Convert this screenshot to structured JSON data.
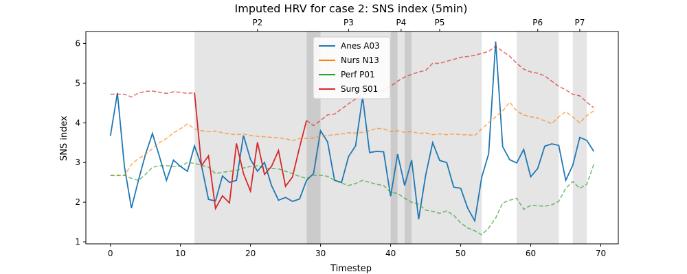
{
  "chart_data": {
    "type": "line",
    "title": "Imputed HRV for case 2: SNS index (5min)",
    "xlabel": "Timestep",
    "ylabel": "SNS index",
    "xlim": [
      -3.5,
      72.5
    ],
    "ylim": [
      0.95,
      6.3
    ],
    "xticks": [
      0,
      10,
      20,
      30,
      40,
      50,
      60,
      70
    ],
    "yticks": [
      1,
      2,
      3,
      4,
      5,
      6
    ],
    "grid": false,
    "legend_position": "top-center",
    "phase_bands": [
      {
        "start": 12,
        "end": 28
      },
      {
        "start": 30,
        "end": 40
      },
      {
        "start": 41,
        "end": 42
      },
      {
        "start": 43,
        "end": 53
      },
      {
        "start": 58,
        "end": 64
      },
      {
        "start": 66,
        "end": 68
      }
    ],
    "overlap_bands": [
      {
        "start": 28,
        "end": 30
      },
      {
        "start": 40,
        "end": 41
      },
      {
        "start": 42,
        "end": 43
      }
    ],
    "phase_labels": [
      {
        "label": "P2",
        "x": 21
      },
      {
        "label": "P3",
        "x": 34
      },
      {
        "label": "P4",
        "x": 41.5
      },
      {
        "label": "P5",
        "x": 47
      },
      {
        "label": "P6",
        "x": 61
      },
      {
        "label": "P7",
        "x": 67
      }
    ],
    "series": [
      {
        "name": "Anes A03",
        "color": "#1f77b4",
        "x": [
          0,
          1,
          2,
          3,
          4,
          5,
          6,
          7,
          8,
          9,
          10,
          11,
          12,
          13,
          14,
          15,
          16,
          17,
          18,
          19,
          20,
          21,
          22,
          23,
          24,
          25,
          26,
          27,
          28,
          29,
          30,
          31,
          32,
          33,
          34,
          35,
          36,
          37,
          38,
          39,
          40,
          41,
          42,
          43,
          44,
          45,
          46,
          47,
          48,
          49,
          50,
          51,
          52,
          53,
          54,
          55,
          56,
          57,
          58,
          59,
          60,
          61,
          62,
          63,
          64,
          65,
          66,
          67,
          68,
          69
        ],
        "y": [
          3.67,
          4.75,
          2.9,
          1.85,
          2.55,
          3.2,
          3.73,
          3.15,
          2.55,
          3.06,
          2.9,
          2.78,
          3.42,
          2.92,
          2.07,
          2.03,
          2.66,
          2.5,
          2.55,
          3.68,
          3.08,
          2.78,
          3.0,
          2.42,
          2.05,
          2.12,
          2.02,
          2.08,
          2.55,
          2.72,
          3.8,
          3.52,
          2.55,
          2.5,
          3.15,
          3.42,
          4.65,
          3.25,
          3.28,
          3.27,
          2.15,
          3.21,
          2.42,
          3.06,
          1.57,
          2.68,
          3.5,
          3.05,
          3.0,
          2.38,
          2.35,
          1.85,
          1.53,
          2.63,
          3.22,
          6.05,
          3.4,
          3.07,
          2.99,
          3.33,
          2.64,
          2.85,
          3.41,
          3.47,
          3.43,
          2.55,
          2.93,
          3.63,
          3.56,
          3.28
        ]
      },
      {
        "name": "Nurs N13",
        "color": "#ff7f0e",
        "x": [
          0,
          1,
          2,
          3,
          4,
          5,
          6,
          7,
          8,
          9,
          10,
          11,
          12,
          13,
          14,
          15,
          16,
          17,
          18,
          19,
          20,
          21,
          22,
          23,
          24,
          25,
          26,
          27,
          28,
          29,
          30,
          31,
          32,
          33,
          34,
          35,
          36,
          37,
          38,
          39,
          40,
          41,
          42,
          43,
          44,
          45,
          46,
          47,
          48,
          49,
          50,
          51,
          52,
          53,
          54,
          55,
          56,
          57,
          58,
          59,
          60,
          61,
          62,
          63,
          64,
          65,
          66,
          67,
          68,
          69
        ],
        "y": [
          2.67,
          2.67,
          2.67,
          2.95,
          3.1,
          3.2,
          3.35,
          3.5,
          3.6,
          3.75,
          3.85,
          3.97,
          3.85,
          3.8,
          3.78,
          3.79,
          3.75,
          3.72,
          3.7,
          3.72,
          3.68,
          3.66,
          3.65,
          3.63,
          3.62,
          3.6,
          3.55,
          3.6,
          3.61,
          3.62,
          3.66,
          3.68,
          3.7,
          3.72,
          3.75,
          3.74,
          3.76,
          3.8,
          3.86,
          3.85,
          3.78,
          3.8,
          3.76,
          3.78,
          3.73,
          3.75,
          3.7,
          3.72,
          3.7,
          3.72,
          3.7,
          3.7,
          3.68,
          3.85,
          4.0,
          4.15,
          4.3,
          4.52,
          4.3,
          4.2,
          4.15,
          4.12,
          4.05,
          3.98,
          4.15,
          4.28,
          4.15,
          4.0,
          4.18,
          4.3
        ]
      },
      {
        "name": "Perf P01",
        "color": "#2ca02c",
        "x": [
          0,
          1,
          2,
          3,
          4,
          5,
          6,
          7,
          8,
          9,
          10,
          11,
          12,
          13,
          14,
          15,
          16,
          17,
          18,
          19,
          20,
          21,
          22,
          23,
          24,
          25,
          26,
          27,
          28,
          29,
          30,
          31,
          32,
          33,
          34,
          35,
          36,
          37,
          38,
          39,
          40,
          41,
          42,
          43,
          44,
          45,
          46,
          47,
          48,
          49,
          50,
          51,
          52,
          53,
          54,
          55,
          56,
          57,
          58,
          59,
          60,
          61,
          62,
          63,
          64,
          65,
          66,
          67,
          68,
          69
        ],
        "y": [
          2.68,
          2.68,
          2.68,
          2.6,
          2.55,
          2.7,
          2.88,
          2.92,
          2.92,
          2.9,
          2.9,
          3.0,
          2.98,
          2.93,
          2.88,
          2.72,
          2.75,
          2.78,
          2.8,
          2.86,
          2.9,
          2.92,
          2.85,
          2.85,
          2.84,
          2.78,
          2.72,
          2.65,
          2.6,
          2.68,
          2.68,
          2.65,
          2.55,
          2.48,
          2.42,
          2.47,
          2.55,
          2.5,
          2.45,
          2.42,
          2.25,
          2.22,
          2.1,
          2.0,
          1.95,
          1.8,
          1.77,
          1.72,
          1.78,
          1.67,
          1.48,
          1.35,
          1.28,
          1.18,
          1.35,
          1.6,
          1.98,
          2.05,
          2.1,
          1.82,
          1.92,
          1.91,
          1.9,
          1.93,
          2.02,
          2.35,
          2.52,
          2.35,
          2.45,
          2.95
        ]
      },
      {
        "name": "Surg S01",
        "color": "#d62728",
        "x": [
          0,
          1,
          2,
          3,
          4,
          5,
          6,
          7,
          8,
          9,
          10,
          11,
          12,
          13,
          14,
          15,
          16,
          17,
          18,
          19,
          20,
          21,
          22,
          23,
          24,
          25,
          26,
          27,
          28,
          29,
          30,
          31,
          32,
          33,
          34,
          35,
          36,
          37,
          38,
          39,
          40,
          41,
          42,
          43,
          44,
          45,
          46,
          47,
          48,
          49,
          50,
          51,
          52,
          53,
          54,
          55,
          56,
          57,
          58,
          59,
          60,
          61,
          62,
          63,
          64,
          65,
          66,
          67,
          68,
          69
        ],
        "y": [
          4.72,
          4.72,
          4.72,
          4.65,
          4.75,
          4.79,
          4.8,
          4.77,
          4.74,
          4.78,
          4.77,
          4.74,
          4.76,
          2.92,
          3.17,
          1.84,
          2.16,
          1.98,
          3.48,
          2.72,
          2.28,
          3.51,
          2.7,
          2.9,
          3.3,
          2.4,
          2.64,
          3.38,
          4.06,
          3.93,
          4.06,
          4.2,
          4.22,
          4.35,
          4.48,
          4.6,
          4.72,
          4.75,
          4.8,
          4.82,
          4.92,
          5.05,
          5.15,
          5.22,
          5.28,
          5.32,
          5.5,
          5.5,
          5.55,
          5.6,
          5.65,
          5.67,
          5.7,
          5.75,
          5.8,
          5.93,
          5.8,
          5.68,
          5.5,
          5.35,
          5.28,
          5.25,
          5.18,
          5.05,
          4.92,
          4.83,
          4.72,
          4.68,
          4.52,
          4.38
        ],
        "observed_range": [
          12,
          28
        ]
      }
    ]
  }
}
